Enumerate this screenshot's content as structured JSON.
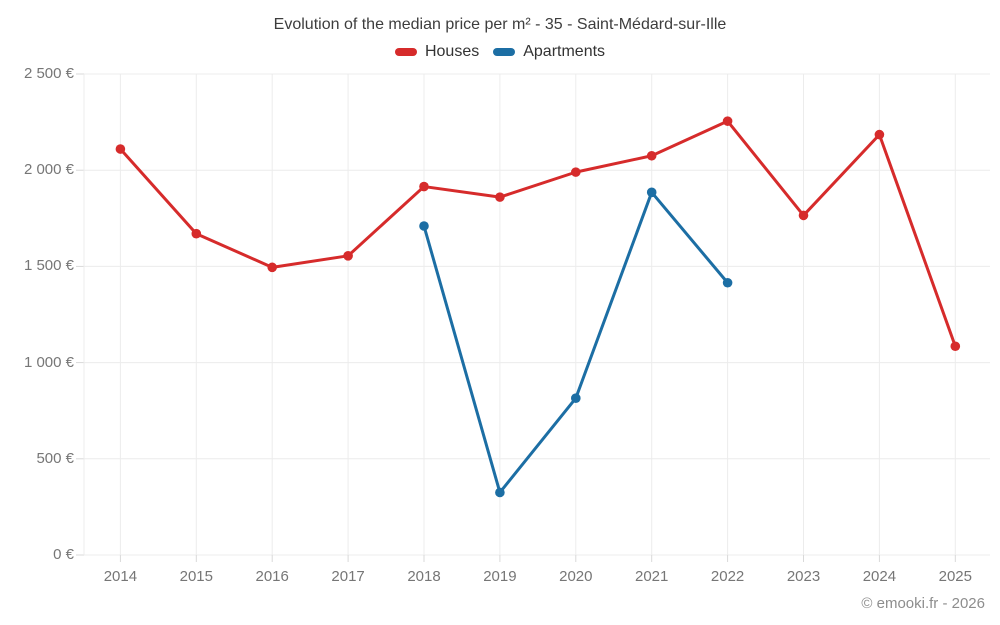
{
  "title": "Evolution of the median price per m² - 35 - Saint-Médard-sur-Ille",
  "attribution": "© emooki.fr - 2026",
  "colors": {
    "houses": "#d62b2b",
    "apartments": "#1c6ea4",
    "grid": "#ececec",
    "tick": "#d9d9d9",
    "axis_text": "#767676",
    "title_text": "#3d3d3d",
    "background": "#ffffff"
  },
  "chart_data": {
    "type": "line",
    "title": "Evolution of the median price per m² - 35 - Saint-Médard-sur-Ille",
    "categories": [
      "2014",
      "2015",
      "2016",
      "2017",
      "2018",
      "2019",
      "2020",
      "2021",
      "2022",
      "2023",
      "2024",
      "2025"
    ],
    "series": [
      {
        "name": "Houses",
        "color": "#d62b2b",
        "values": [
          2110,
          1670,
          1495,
          1555,
          1915,
          1860,
          1990,
          2075,
          2255,
          1765,
          2185,
          1085
        ]
      },
      {
        "name": "Apartments",
        "color": "#1c6ea4",
        "values": [
          null,
          null,
          null,
          null,
          1710,
          325,
          815,
          1885,
          1415,
          null,
          null,
          null
        ]
      }
    ],
    "xlabel": "",
    "ylabel": "",
    "ylim": [
      0,
      2500
    ],
    "y_ticks": [
      0,
      500,
      1000,
      1500,
      2000,
      2500
    ],
    "y_tick_labels": [
      "0 €",
      "500 €",
      "1 000 €",
      "1 500 €",
      "2 000 €",
      "2 500 €"
    ],
    "grid": true,
    "legend_position": "top",
    "marker_radius": 4.8,
    "line_width": 3
  }
}
